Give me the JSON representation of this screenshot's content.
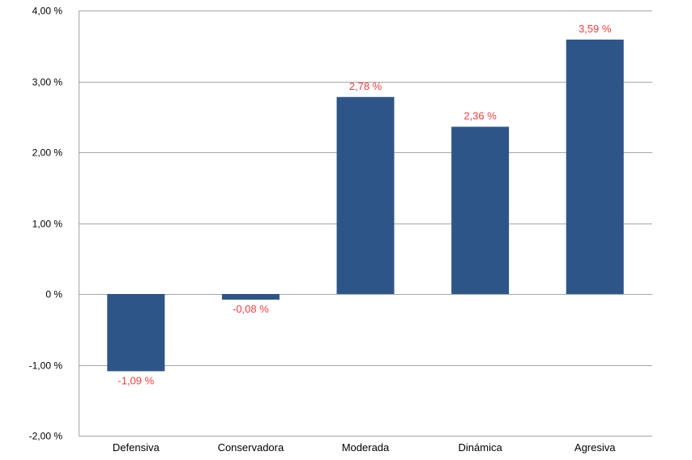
{
  "chart_data": {
    "type": "bar",
    "categories": [
      "Defensiva",
      "Conservadora",
      "Moderada",
      "Dinámica",
      "Agresiva"
    ],
    "values": [
      -1.09,
      -0.08,
      2.78,
      2.36,
      3.59
    ],
    "data_labels": [
      "-1,09 %",
      "-0,08 %",
      "2,78 %",
      "2,36 %",
      "3,59 %"
    ],
    "ylim": [
      -2,
      4
    ],
    "yticks": [
      -2,
      -1,
      0,
      1,
      2,
      3,
      4
    ],
    "ytick_labels": [
      "-2,00 %",
      "-1,00 %",
      "0 %",
      "1,00 %",
      "2,00 %",
      "3,00 %",
      "4,00 %"
    ],
    "title": "",
    "xlabel": "",
    "ylabel": "",
    "grid": true,
    "legend": "none",
    "colors": {
      "bar": "#2e5588",
      "data_label": "#ff3b3b",
      "grid": "#a6a6a6"
    }
  }
}
